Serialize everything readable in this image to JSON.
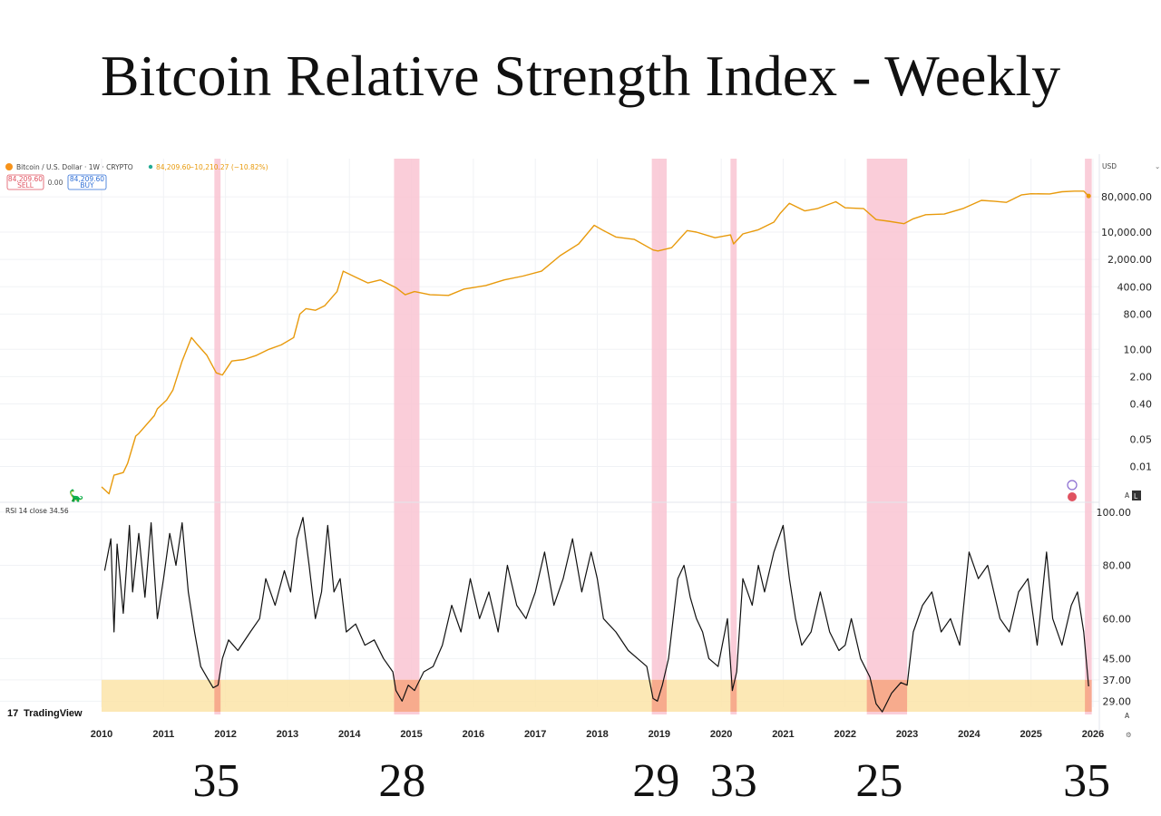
{
  "title": "Bitcoin Relative Strength Index - Weekly",
  "header": {
    "symbol": "Bitcoin / U.S. Dollar · 1W · CRYPTO",
    "last_price": "84,209.60",
    "change": "−10,210.27 (−10.82%)",
    "sell_price": "84,209.60",
    "sell_label": "SELL",
    "spread": "0.00",
    "buy_price": "84,209.60",
    "buy_label": "BUY",
    "currency": "USD",
    "price_color": "#e89a0c",
    "sell_color": "#e05260",
    "buy_color": "#2f6fd6"
  },
  "rsi_header": "RSI 14 close  34.56",
  "watermark": "TradingView",
  "scale_buttons": [
    "A",
    "L"
  ],
  "rsi_lows": [
    {
      "label": "35",
      "year": 2011.85
    },
    {
      "label": "28",
      "year": 2014.85
    },
    {
      "label": "29",
      "year": 2018.95
    },
    {
      "label": "33",
      "year": 2020.2
    },
    {
      "label": "25",
      "year": 2022.55
    },
    {
      "label": "35",
      "year": 2025.9
    }
  ],
  "chart_data": [
    {
      "type": "line",
      "name": "Bitcoin / U.S. Dollar",
      "color": "#e89a0c",
      "yscale": "log",
      "ylim": [
        0.0015,
        200000
      ],
      "yticks": [
        "80,000.00",
        "10,000.00",
        "2,000.00",
        "400.00",
        "80.00",
        "10.00",
        "2.00",
        "0.40",
        "0.05",
        "0.01"
      ],
      "ytick_values": [
        80000,
        10000,
        2000,
        400,
        80,
        10,
        2,
        0.4,
        0.05,
        0.01
      ],
      "x": [
        2010.0,
        2010.12,
        2010.2,
        2010.35,
        2010.42,
        2010.55,
        2010.6,
        2010.85,
        2010.9,
        2011.05,
        2011.15,
        2011.3,
        2011.45,
        2011.55,
        2011.7,
        2011.85,
        2011.95,
        2012.1,
        2012.3,
        2012.5,
        2012.7,
        2012.9,
        2013.1,
        2013.2,
        2013.3,
        2013.45,
        2013.6,
        2013.8,
        2013.9,
        2014.1,
        2014.3,
        2014.5,
        2014.75,
        2014.9,
        2015.05,
        2015.3,
        2015.6,
        2015.85,
        2016.2,
        2016.5,
        2016.8,
        2017.1,
        2017.4,
        2017.7,
        2017.95,
        2018.1,
        2018.3,
        2018.6,
        2018.9,
        2018.98,
        2019.2,
        2019.45,
        2019.6,
        2019.9,
        2020.15,
        2020.2,
        2020.35,
        2020.6,
        2020.85,
        2020.95,
        2021.1,
        2021.35,
        2021.55,
        2021.85,
        2022.0,
        2022.3,
        2022.5,
        2022.7,
        2022.95,
        2023.1,
        2023.3,
        2023.6,
        2023.9,
        2024.2,
        2024.4,
        2024.6,
        2024.85,
        2025.0,
        2025.3,
        2025.5,
        2025.7,
        2025.85,
        2025.93
      ],
      "y": [
        0.003,
        0.002,
        0.006,
        0.007,
        0.012,
        0.06,
        0.07,
        0.2,
        0.3,
        0.5,
        0.9,
        5,
        20,
        13,
        7,
        2.5,
        2.2,
        5,
        5.5,
        7,
        10,
        13,
        20,
        80,
        110,
        100,
        130,
        300,
        1000,
        700,
        500,
        600,
        380,
        250,
        300,
        250,
        240,
        350,
        430,
        600,
        750,
        1000,
        2500,
        5000,
        15000,
        11000,
        7500,
        6500,
        3500,
        3300,
        4000,
        11000,
        10000,
        7200,
        8500,
        5000,
        9000,
        11500,
        18000,
        30000,
        55000,
        35000,
        40000,
        60000,
        42000,
        40000,
        21000,
        19000,
        16500,
        22000,
        28000,
        29000,
        40000,
        65000,
        62000,
        58000,
        90000,
        96000,
        95000,
        108000,
        112000,
        112000,
        84209.6
      ]
    },
    {
      "type": "line",
      "name": "RSI 14 close",
      "color": "#111111",
      "ylim": [
        24,
        103
      ],
      "yticks": [
        "100.00",
        "80.00",
        "60.00",
        "45.00",
        "37.00",
        "29.00"
      ],
      "ytick_values": [
        100,
        80,
        60,
        45,
        37,
        29
      ],
      "band": [
        25,
        37
      ],
      "band_color": "#fbe4a8",
      "x": [
        2010.05,
        2010.15,
        2010.2,
        2010.25,
        2010.35,
        2010.45,
        2010.5,
        2010.6,
        2010.7,
        2010.8,
        2010.9,
        2011.0,
        2011.1,
        2011.2,
        2011.3,
        2011.4,
        2011.5,
        2011.6,
        2011.7,
        2011.8,
        2011.88,
        2011.95,
        2012.05,
        2012.2,
        2012.4,
        2012.55,
        2012.65,
        2012.8,
        2012.95,
        2013.05,
        2013.15,
        2013.25,
        2013.35,
        2013.45,
        2013.55,
        2013.65,
        2013.75,
        2013.85,
        2013.95,
        2014.1,
        2014.25,
        2014.4,
        2014.55,
        2014.7,
        2014.75,
        2014.85,
        2014.95,
        2015.05,
        2015.2,
        2015.35,
        2015.5,
        2015.65,
        2015.8,
        2015.95,
        2016.1,
        2016.25,
        2016.4,
        2016.55,
        2016.7,
        2016.85,
        2017.0,
        2017.15,
        2017.3,
        2017.45,
        2017.6,
        2017.75,
        2017.9,
        2018.0,
        2018.1,
        2018.3,
        2018.5,
        2018.65,
        2018.8,
        2018.9,
        2018.97,
        2019.05,
        2019.15,
        2019.3,
        2019.4,
        2019.5,
        2019.6,
        2019.7,
        2019.8,
        2019.95,
        2020.1,
        2020.18,
        2020.25,
        2020.35,
        2020.5,
        2020.6,
        2020.7,
        2020.85,
        2021.0,
        2021.1,
        2021.2,
        2021.3,
        2021.45,
        2021.6,
        2021.75,
        2021.9,
        2022.0,
        2022.1,
        2022.25,
        2022.4,
        2022.5,
        2022.6,
        2022.75,
        2022.9,
        2023.0,
        2023.1,
        2023.25,
        2023.4,
        2023.55,
        2023.7,
        2023.85,
        2024.0,
        2024.15,
        2024.3,
        2024.5,
        2024.65,
        2024.8,
        2024.95,
        2025.1,
        2025.25,
        2025.35,
        2025.5,
        2025.65,
        2025.75,
        2025.85,
        2025.93
      ],
      "y": [
        78,
        90,
        55,
        88,
        62,
        95,
        70,
        92,
        68,
        96,
        60,
        75,
        92,
        80,
        96,
        70,
        55,
        42,
        38,
        34,
        35,
        45,
        52,
        48,
        55,
        60,
        75,
        65,
        78,
        70,
        90,
        98,
        80,
        60,
        70,
        95,
        70,
        75,
        55,
        58,
        50,
        52,
        45,
        40,
        33,
        29,
        35,
        33,
        40,
        42,
        50,
        65,
        55,
        75,
        60,
        70,
        55,
        80,
        65,
        60,
        70,
        85,
        65,
        75,
        90,
        70,
        85,
        75,
        60,
        55,
        48,
        45,
        42,
        30,
        29,
        35,
        45,
        75,
        80,
        68,
        60,
        55,
        45,
        42,
        60,
        33,
        40,
        75,
        65,
        80,
        70,
        85,
        95,
        75,
        60,
        50,
        55,
        70,
        55,
        48,
        50,
        60,
        45,
        38,
        28,
        25,
        32,
        36,
        35,
        55,
        65,
        70,
        55,
        60,
        50,
        85,
        75,
        80,
        60,
        55,
        70,
        75,
        50,
        85,
        60,
        50,
        65,
        70,
        55,
        34.56
      ]
    }
  ]
}
